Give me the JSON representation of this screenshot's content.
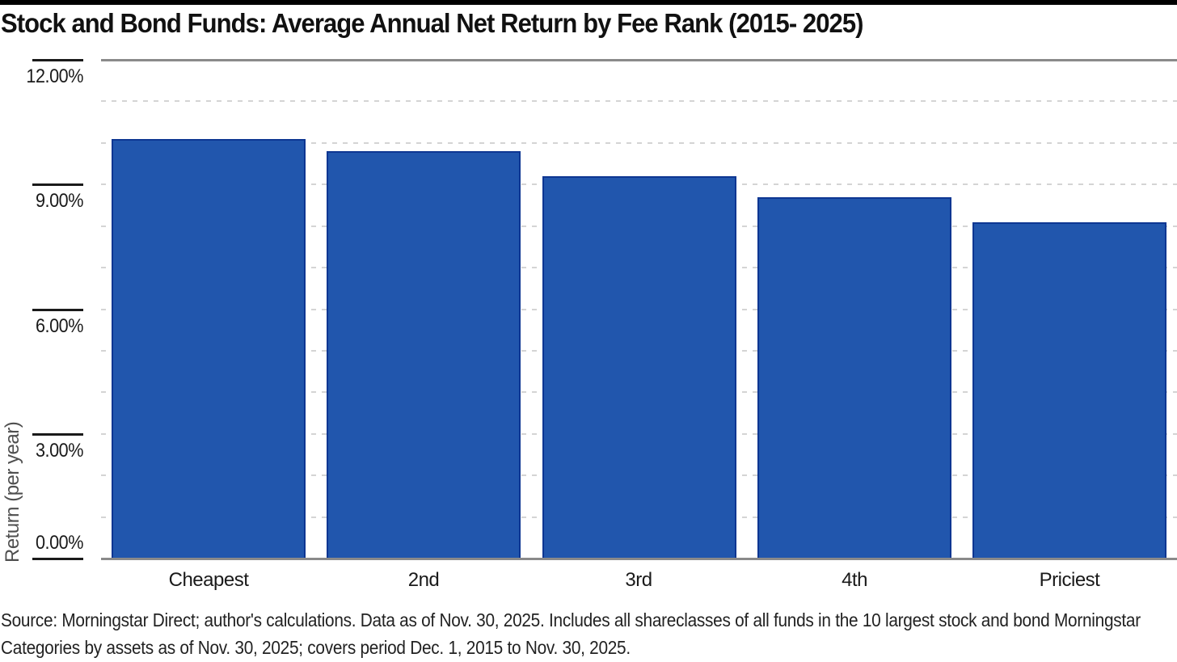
{
  "chart_data": {
    "type": "bar",
    "title": "Stock and Bond Funds: Average Annual Net Return by Fee Rank (2015- 2025)",
    "categories": [
      "Cheapest",
      "2nd",
      "3rd",
      "4th",
      "Priciest"
    ],
    "values": [
      10.1,
      9.8,
      9.2,
      8.7,
      8.1
    ],
    "xlabel": "",
    "ylabel": "Return (per year)",
    "ylim": [
      0,
      12
    ],
    "ytick_values": [
      12,
      9,
      6,
      3,
      0
    ],
    "ytick_labels": [
      "12.00%",
      "9.00%",
      "6.00%",
      "3.00%",
      "0.00%"
    ],
    "grid": "horizontal dashed gridlines every 1%, solid gray border at top (12%) and baseline (0%)",
    "legend_position": "none",
    "bar_color": "#2156ad",
    "bar_border_color": "#0d3692"
  },
  "footer": {
    "source_line1": "Source: Morningstar Direct; author's calculations. Data as of Nov. 30, 2025. Includes all shareclasses of all funds in the 10 largest stock and bond Morningstar",
    "source_line2": "Categories by assets as of Nov. 30, 2025; covers period Dec. 1, 2015 to Nov. 30, 2025."
  },
  "colors": {
    "top_strip": "#000000",
    "axis_border": "#8a8a8a",
    "gridline": "#d4d4d4",
    "tick": "#1a1a1a",
    "text": "#1a1a1a",
    "y_title": "#4f4f4f"
  }
}
